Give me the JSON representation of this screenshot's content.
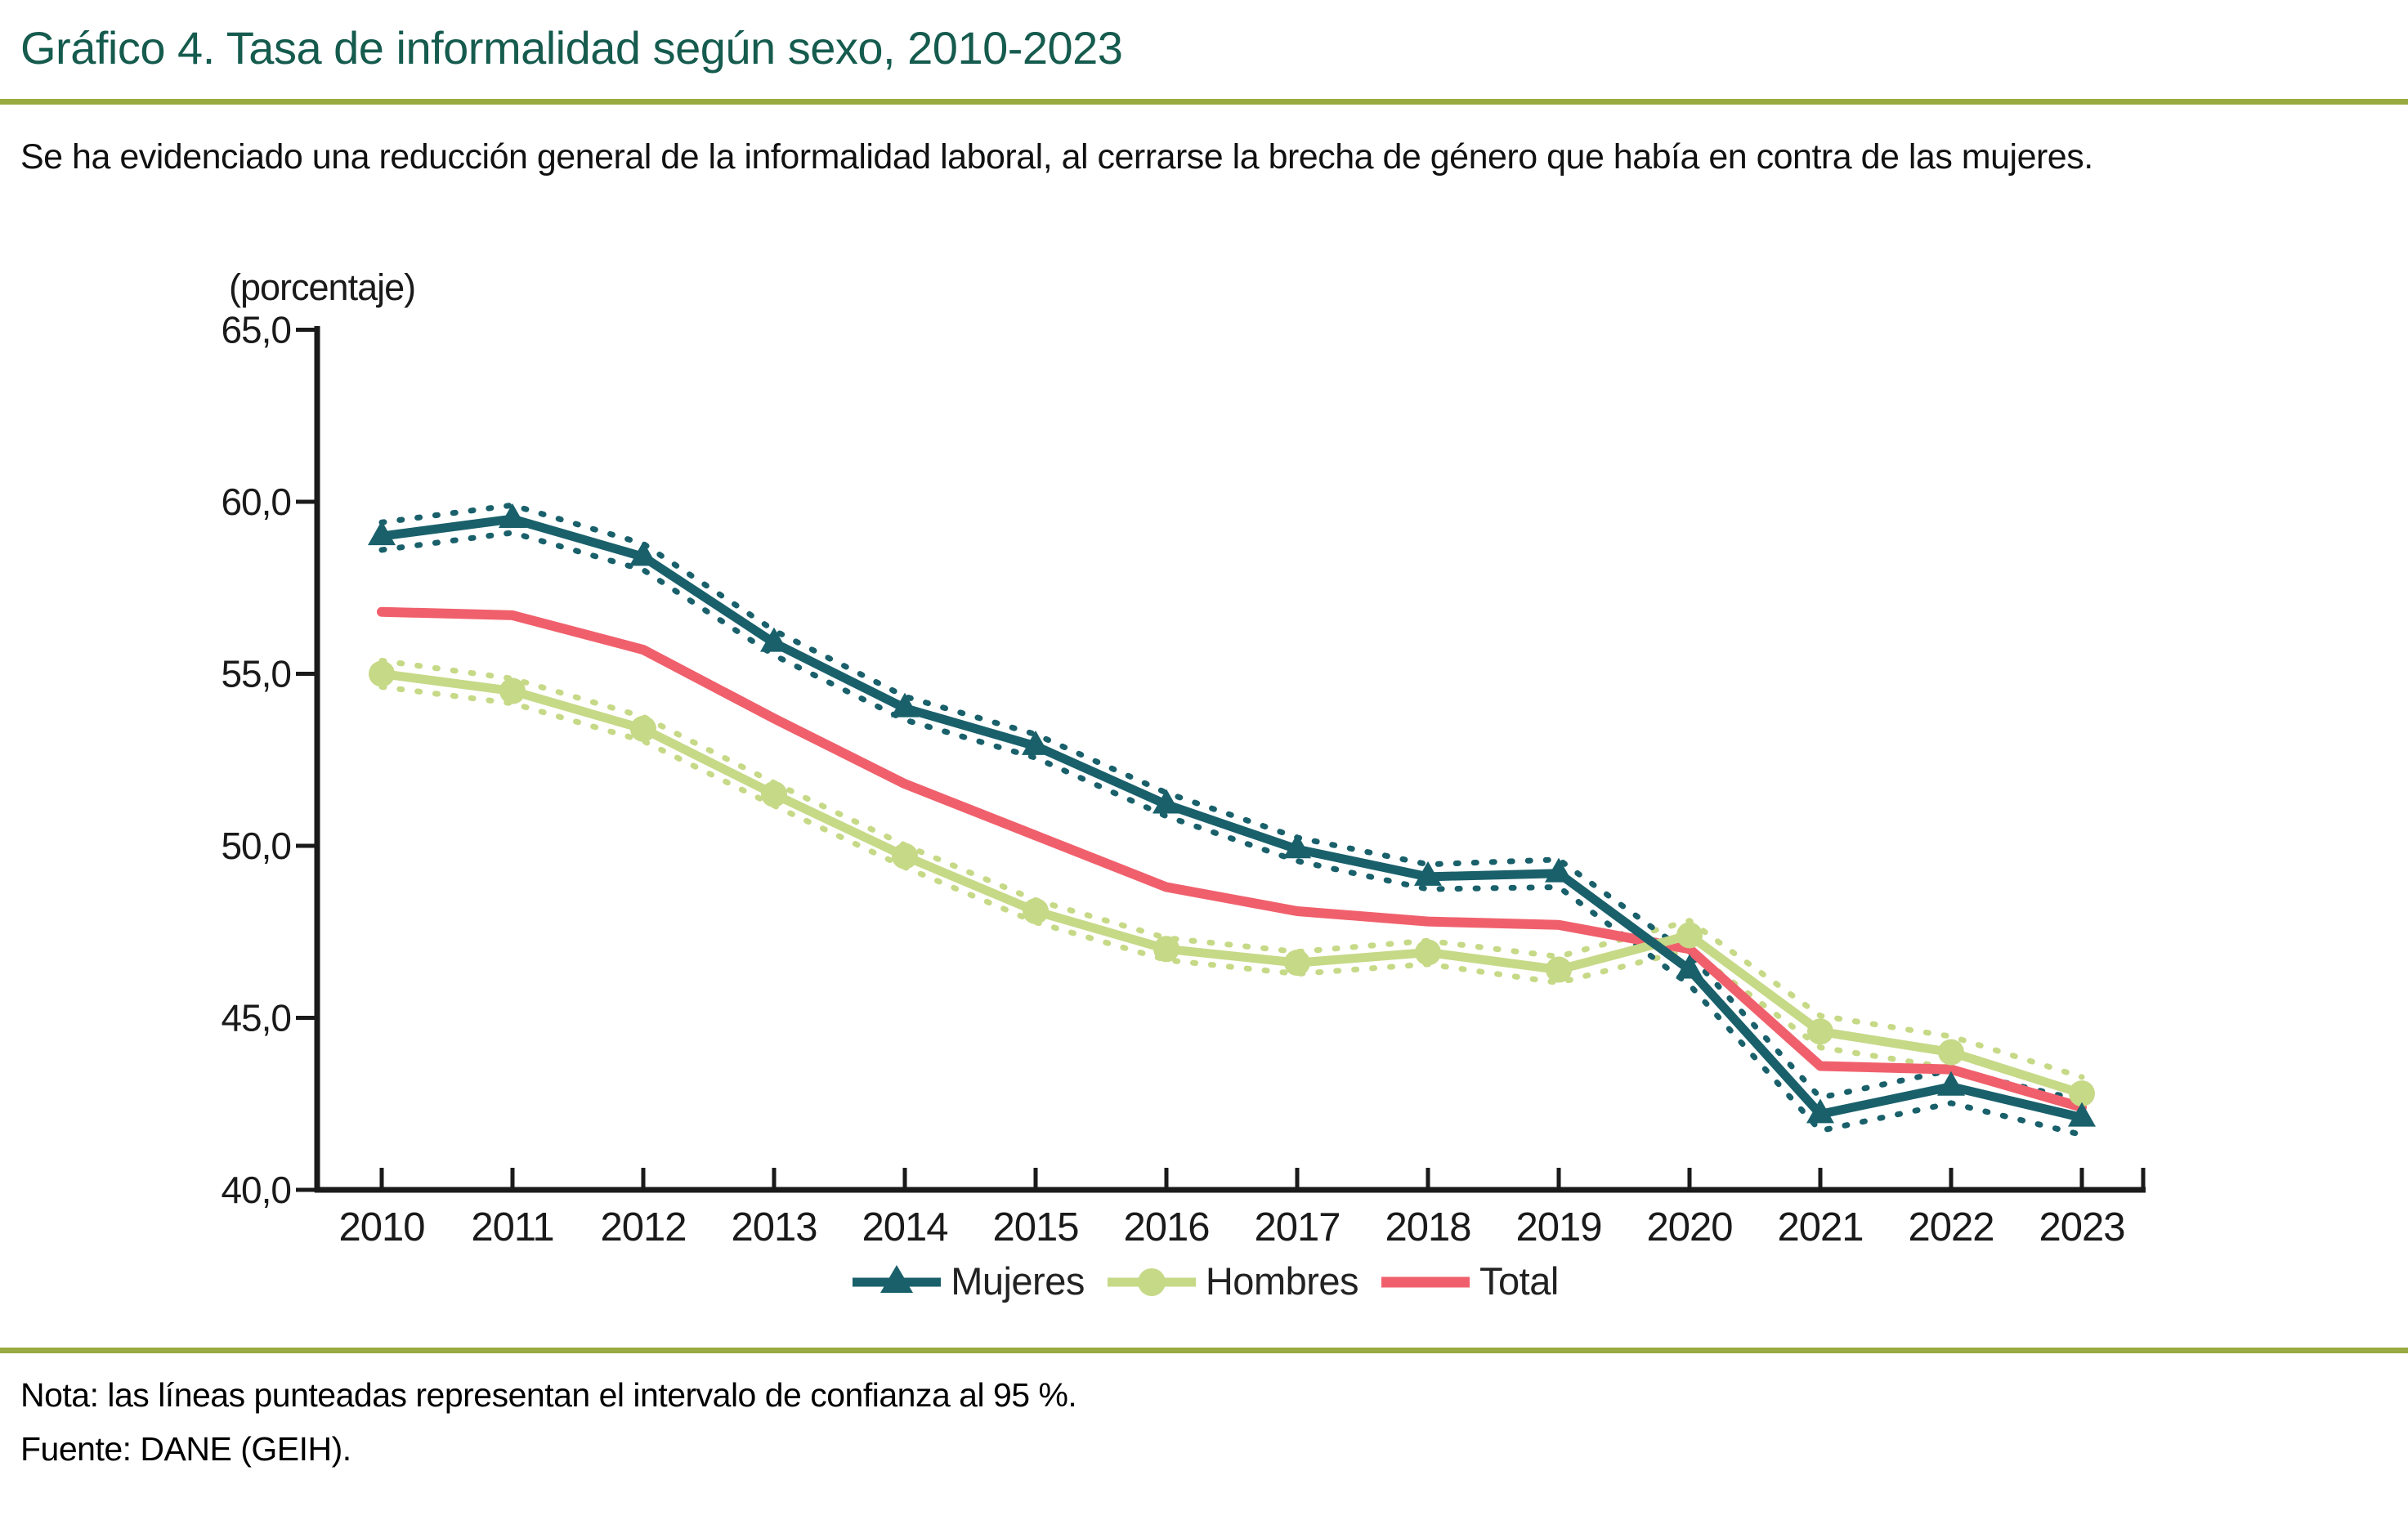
{
  "header": {
    "title": "Gráfico 4. Tasa de informalidad según sexo, 2010-2023",
    "subtitle": "Se ha evidenciado una reducción general de la informalidad laboral, al cerrarse la brecha de género que había en contra de las mujeres."
  },
  "chart_data": {
    "type": "line",
    "title": "Tasa de informalidad según sexo, 2010-2023",
    "unit_label": "(porcentaje)",
    "xlabel": "",
    "ylabel": "(porcentaje)",
    "ylim": [
      40.0,
      65.0
    ],
    "y_tick_values": [
      65,
      60,
      55,
      50,
      45,
      40
    ],
    "y_ticks": [
      "65,0",
      "60,0",
      "55,0",
      "50,0",
      "45,0",
      "40,0"
    ],
    "grid": false,
    "legend_position": "bottom",
    "categories": [
      "2010",
      "2011",
      "2012",
      "2013",
      "2014",
      "2015",
      "2016",
      "2017",
      "2018",
      "2019",
      "2020",
      "2021",
      "2022",
      "2023"
    ],
    "series": [
      {
        "name": "Mujeres",
        "color": "#19606B",
        "marker": "triangle",
        "values": [
          59.0,
          59.5,
          58.4,
          55.9,
          54.0,
          52.9,
          51.2,
          49.9,
          49.1,
          49.2,
          46.4,
          42.2,
          43.0,
          42.1
        ],
        "ci_halfwidth": [
          0.4,
          0.4,
          0.38,
          0.36,
          0.34,
          0.34,
          0.34,
          0.34,
          0.36,
          0.4,
          0.44,
          0.48,
          0.48,
          0.5
        ]
      },
      {
        "name": "Hombres",
        "color": "#C6D987",
        "marker": "circle",
        "values": [
          55.0,
          54.5,
          53.4,
          51.5,
          49.7,
          48.1,
          47.0,
          46.6,
          46.9,
          46.4,
          47.4,
          44.6,
          44.0,
          42.8
        ],
        "ci_halfwidth": [
          0.38,
          0.36,
          0.35,
          0.33,
          0.32,
          0.32,
          0.32,
          0.32,
          0.34,
          0.38,
          0.42,
          0.46,
          0.46,
          0.48
        ]
      },
      {
        "name": "Total",
        "color": "#F0606C",
        "marker": "none",
        "values": [
          56.8,
          56.7,
          55.7,
          53.7,
          51.8,
          50.3,
          48.8,
          48.1,
          47.8,
          47.7,
          47.0,
          43.6,
          43.5,
          42.4
        ]
      }
    ],
    "annotations": "las líneas punteadas representan el intervalo de confianza al 95 %"
  },
  "footer": {
    "note": "Nota: las líneas punteadas representan el intervalo de confianza al 95 %.",
    "source": "Fuente: DANE (GEIH)."
  },
  "colors": {
    "title": "#155B4E",
    "separator": "#98AA40",
    "axis": "#1a1a1a",
    "mujeres": "#19606B",
    "hombres": "#C6D987",
    "total": "#F0606C"
  }
}
